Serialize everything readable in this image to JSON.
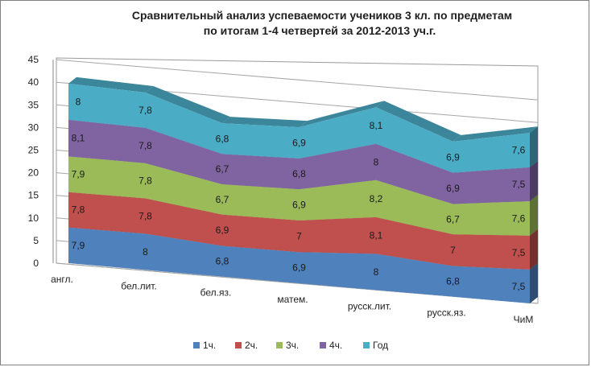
{
  "chart_data": {
    "type": "area",
    "stacked": true,
    "view": "3d",
    "title": [
      "Сравнительный анализ успеваемости учеников 3 кл. по предметам",
      "по итогам 1-4 четвертей за 2012-2013 уч.г."
    ],
    "categories": [
      "англ.",
      "бел.лит.",
      "бел.яз.",
      "матем.",
      "русск.лит.",
      "русск.яз.",
      "ЧиМ"
    ],
    "ylim": [
      0,
      45
    ],
    "yticks": [
      0,
      5,
      10,
      15,
      20,
      25,
      30,
      35,
      40,
      45
    ],
    "grid": true,
    "legend_position": "bottom",
    "series": [
      {
        "name": "1ч.",
        "color": "#4f81bd",
        "values": [
          7.9,
          8,
          6.8,
          6.9,
          8,
          6.8,
          7.5
        ]
      },
      {
        "name": "2ч.",
        "color": "#c0504d",
        "values": [
          7.8,
          7.8,
          6.9,
          7,
          8.1,
          7,
          7.5
        ]
      },
      {
        "name": "3ч.",
        "color": "#9bbb59",
        "values": [
          7.9,
          7.8,
          6.7,
          6.9,
          8.2,
          6.7,
          7.6
        ]
      },
      {
        "name": "4ч.",
        "color": "#8064a2",
        "values": [
          8.1,
          7.8,
          6.7,
          6.8,
          8,
          6.9,
          7.5
        ]
      },
      {
        "name": "Год",
        "color": "#4bacc6",
        "values": [
          8,
          7.8,
          6.8,
          6.9,
          8.1,
          6.9,
          7.6
        ]
      }
    ],
    "data_labels": [
      [
        "7,9",
        "8",
        "6,8",
        "6,9",
        "8",
        "6,8",
        "7,5"
      ],
      [
        "7,8",
        "7,8",
        "6,9",
        "7",
        "8,1",
        "7",
        "7,5"
      ],
      [
        "7,9",
        "7,8",
        "6,7",
        "6,9",
        "8,2",
        "6,7",
        "7,6"
      ],
      [
        "8,1",
        "7,8",
        "6,7",
        "6,8",
        "8",
        "6,9",
        "7,5"
      ],
      [
        "8",
        "7,8",
        "6,8",
        "6,9",
        "8,1",
        "6,9",
        "7,6"
      ]
    ]
  }
}
